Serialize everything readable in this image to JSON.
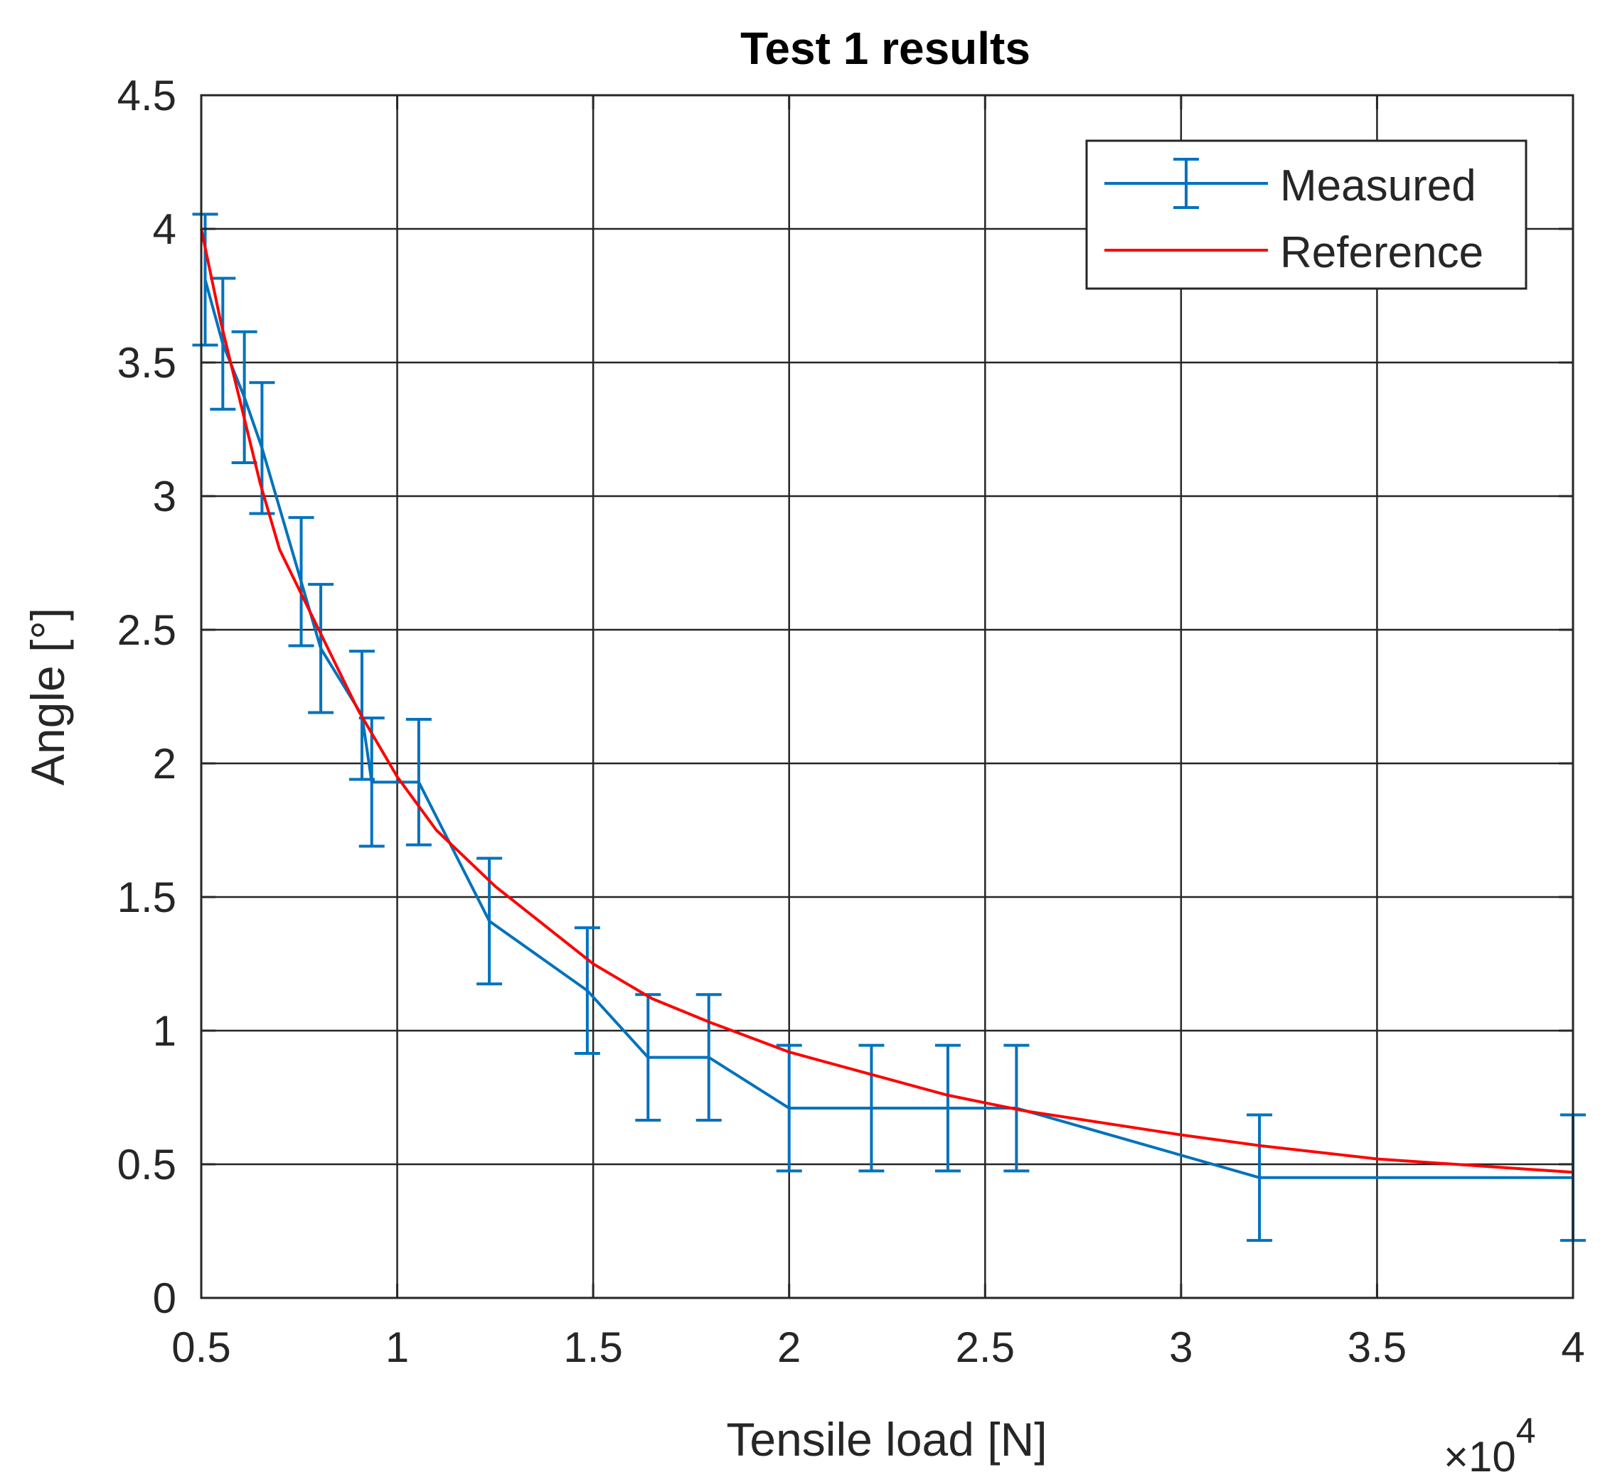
{
  "chart_data": {
    "type": "line",
    "title": "Test 1 results",
    "xlabel": "Tensile load [N]",
    "ylabel": "Angle [°]",
    "x_multiplier_label": "×10",
    "x_multiplier_exponent": "4",
    "xlim": [
      0.5,
      4
    ],
    "ylim": [
      0,
      4.5
    ],
    "grid": true,
    "legend_position": "top-right",
    "x_ticks": [
      0.5,
      1,
      1.5,
      2,
      2.5,
      3,
      3.5,
      4
    ],
    "x_tick_labels": [
      "0.5",
      "1",
      "1.5",
      "2",
      "2.5",
      "3",
      "3.5",
      "4"
    ],
    "y_ticks": [
      0,
      0.5,
      1,
      1.5,
      2,
      2.5,
      3,
      3.5,
      4,
      4.5
    ],
    "y_tick_labels": [
      "0",
      "0.5",
      "1",
      "1.5",
      "2",
      "2.5",
      "3",
      "3.5",
      "4",
      "4.5"
    ],
    "series": [
      {
        "name": "Measured",
        "color": "#0072BD",
        "error_bars": true,
        "x": [
          0.51,
          0.555,
          0.61,
          0.655,
          0.755,
          0.805,
          0.91,
          0.935,
          1.055,
          1.235,
          1.485,
          1.64,
          1.795,
          2.0,
          2.21,
          2.405,
          2.58,
          3.2,
          4.0
        ],
        "y": [
          3.81,
          3.57,
          3.37,
          3.18,
          2.68,
          2.43,
          2.18,
          1.93,
          1.93,
          1.41,
          1.15,
          0.9,
          0.9,
          0.71,
          0.71,
          0.71,
          0.71,
          0.45,
          0.45
        ],
        "err": [
          0.245,
          0.245,
          0.245,
          0.245,
          0.24,
          0.24,
          0.24,
          0.24,
          0.235,
          0.235,
          0.235,
          0.235,
          0.235,
          0.235,
          0.235,
          0.235,
          0.235,
          0.235,
          0.235
        ]
      },
      {
        "name": "Reference",
        "color": "#FF0000",
        "error_bars": false,
        "x": [
          0.5,
          0.55,
          0.6,
          0.65,
          0.7,
          0.8,
          0.9,
          1.0,
          1.1,
          1.25,
          1.5,
          1.65,
          1.8,
          2.0,
          2.2,
          2.4,
          2.6,
          3.0,
          3.2,
          3.5,
          4.0
        ],
        "y": [
          4.0,
          3.65,
          3.35,
          3.05,
          2.8,
          2.5,
          2.2,
          1.95,
          1.75,
          1.54,
          1.25,
          1.12,
          1.03,
          0.92,
          0.84,
          0.76,
          0.7,
          0.61,
          0.57,
          0.52,
          0.47
        ]
      }
    ]
  }
}
